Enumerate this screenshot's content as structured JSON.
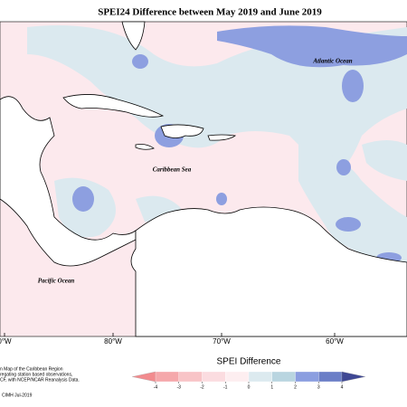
{
  "title": "SPEI24 Difference between May 2019 and June 2019",
  "place_labels": [
    "Atlantic Ocean",
    "Caribbean Sea",
    "Pacific Ocean"
  ],
  "longitude_labels": [
    "0°W",
    "80°W",
    "70°W",
    "60°W"
  ],
  "legend": {
    "title": "SPEI Difference",
    "ticks": [
      -4,
      -3,
      -2,
      -1,
      0,
      1,
      2,
      3,
      4
    ],
    "colors": [
      "#f28b8e",
      "#f5a8ab",
      "#f8c4c7",
      "#fbdce0",
      "#fdeef0",
      "#dceaef",
      "#b9d5e0",
      "#8b9ee0",
      "#6b7ec7",
      "#3f4894"
    ]
  },
  "footer": [
    "n Map of the Caribbean Region",
    "regating station based observations,",
    "CF, with NCEP/NCAR Reanalysis Data.",
    "CIMH Jul-2019"
  ]
}
